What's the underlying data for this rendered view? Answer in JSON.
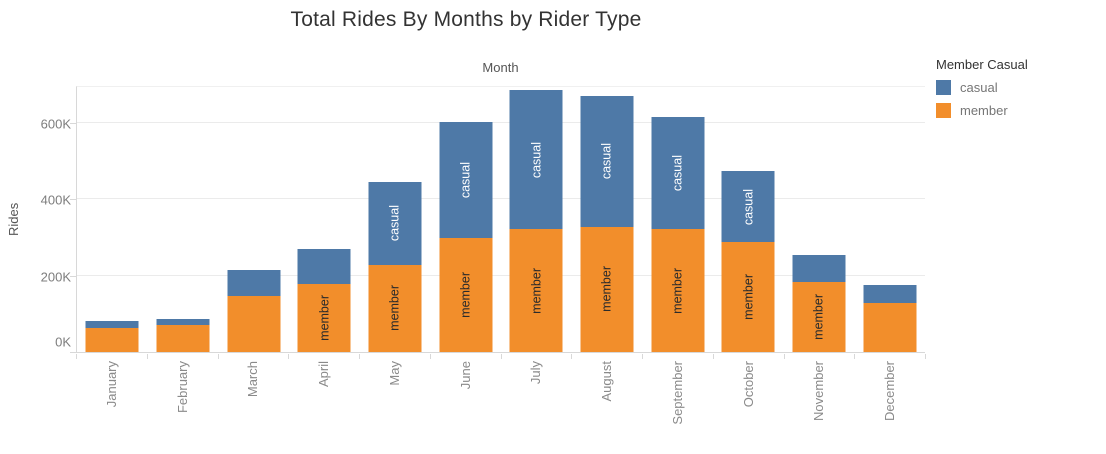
{
  "title": "Total Rides By Months by Rider Type",
  "axes": {
    "x_title": "Month",
    "y_title": "Rides",
    "y_ticks": [
      {
        "label": "0K",
        "value": 0
      },
      {
        "label": "200K",
        "value": 200000
      },
      {
        "label": "400K",
        "value": 400000
      },
      {
        "label": "600K",
        "value": 600000
      }
    ]
  },
  "legend": {
    "title": "Member Casual",
    "items": [
      {
        "label": "casual",
        "color": "#4e79a7"
      },
      {
        "label": "member",
        "color": "#f28e2b"
      }
    ]
  },
  "colors": {
    "casual_blue": "#4e79a7",
    "member_orange": "#f28e2b"
  },
  "chart_data": {
    "type": "bar",
    "stacked": true,
    "title": "Total Rides By Months by Rider Type",
    "xlabel": "Month",
    "ylabel": "Rides",
    "ylim": [
      0,
      697000
    ],
    "grid": "horizontal",
    "legend_position": "top-right",
    "categories": [
      "January",
      "February",
      "March",
      "April",
      "May",
      "June",
      "July",
      "August",
      "September",
      "October",
      "November",
      "December"
    ],
    "series": [
      {
        "name": "member",
        "color": "#f28e2b",
        "values": [
          64000,
          71000,
          146000,
          178000,
          228000,
          299000,
          321000,
          328000,
          322000,
          287000,
          184000,
          129000
        ]
      },
      {
        "name": "casual",
        "color": "#4e79a7",
        "values": [
          17000,
          16000,
          68000,
          92000,
          217000,
          303000,
          364000,
          341000,
          293000,
          185000,
          69000,
          45000
        ]
      }
    ],
    "segment_labels": {
      "member_text": "member",
      "casual_text": "casual",
      "member_shown_on": [
        "April",
        "May",
        "June",
        "July",
        "August",
        "September",
        "October",
        "November"
      ],
      "casual_shown_on": [
        "May",
        "June",
        "July",
        "August",
        "September",
        "October"
      ]
    }
  }
}
